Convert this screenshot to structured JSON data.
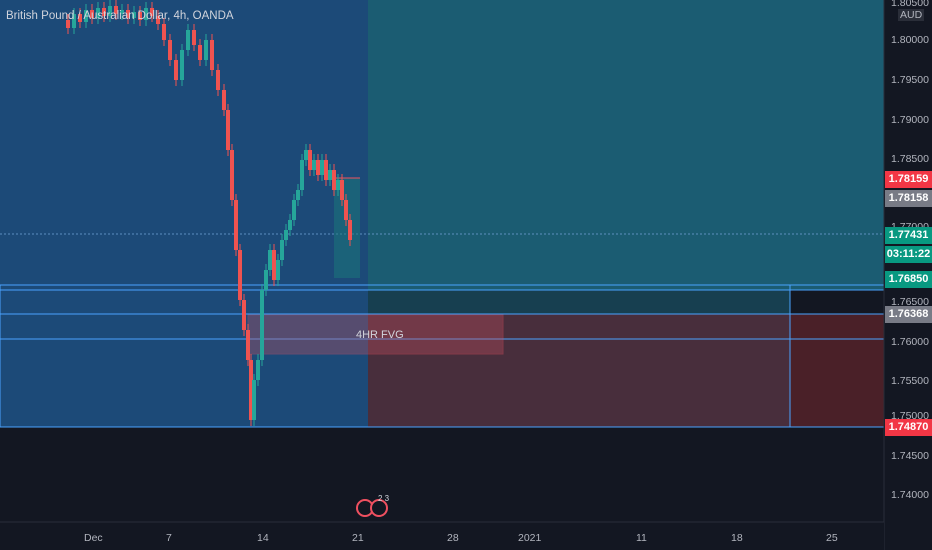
{
  "header": {
    "symbol_title": "British Pound / Australian Dollar, 4h, OANDA"
  },
  "price_axis": {
    "currency": "AUD",
    "top_partial": "1.80500",
    "ticks": [
      "1.80000",
      "1.79500",
      "1.79000",
      "1.78500",
      "1.77000",
      "1.76500",
      "1.76000",
      "1.75500",
      "1.75000",
      "1.74500",
      "1.74000"
    ]
  },
  "price_tags": {
    "tag1": {
      "value": "1.78159",
      "color": "#f23645"
    },
    "tag2": {
      "value": "1.78158",
      "color": "#787b86"
    },
    "last": {
      "value": "1.77431",
      "color": "#089981"
    },
    "countdown": {
      "value": "03:11:22",
      "color": "#089981"
    },
    "tag5": {
      "value": "1.76850",
      "color": "#089981"
    },
    "tag6": {
      "value": "1.76368",
      "color": "#787b86"
    },
    "tag7": {
      "value": "1.74870",
      "color": "#f23645"
    }
  },
  "time_axis": [
    "Dec",
    "7",
    "14",
    "21",
    "28",
    "2021",
    "11",
    "18",
    "25"
  ],
  "annotations": {
    "fvg_label": "4HR FVG",
    "event_badge": "2 3"
  },
  "colors": {
    "background": "#131722",
    "blue_zone": "#1c4a78",
    "teal_zone": "#1b5c72",
    "red_zone": "#5a2a36",
    "candle_up": "#26a69a",
    "candle_down": "#ef5350"
  }
}
